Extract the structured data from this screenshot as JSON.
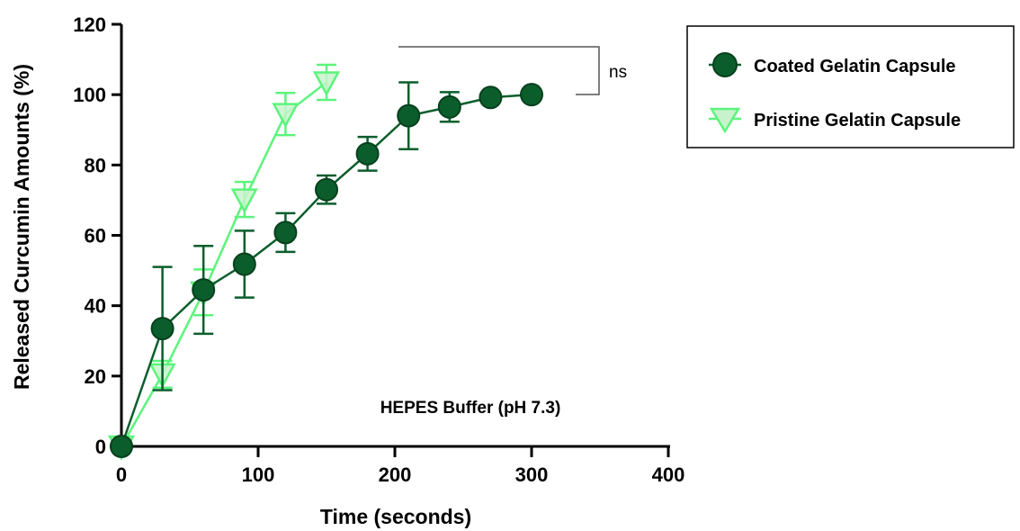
{
  "chart_data": {
    "type": "line",
    "xlabel": "Time (seconds)",
    "ylabel": "Released Curcumin Amounts (%)",
    "xlim": [
      0,
      400
    ],
    "ylim": [
      0,
      120
    ],
    "xticks": [
      "0",
      "100",
      "200",
      "300",
      "400"
    ],
    "yticks": [
      "0",
      "20",
      "40",
      "60",
      "80",
      "100",
      "120"
    ],
    "annotation": "HEPES Buffer (pH 7.3)",
    "significance": "ns",
    "grid": false,
    "legend_position": "outside-right",
    "series": [
      {
        "name": "Coated Gelatin Capsule",
        "marker": "circle",
        "color": "#0b5e2c",
        "points": [
          {
            "x": 0,
            "y": 0,
            "err": 0
          },
          {
            "x": 30,
            "y": 33.5,
            "err": 17.5
          },
          {
            "x": 60,
            "y": 44.5,
            "err": 12.5
          },
          {
            "x": 90,
            "y": 51.8,
            "err": 9.5
          },
          {
            "x": 120,
            "y": 60.8,
            "err": 5.5
          },
          {
            "x": 150,
            "y": 73,
            "err": 4
          },
          {
            "x": 180,
            "y": 83.2,
            "err": 4.8
          },
          {
            "x": 210,
            "y": 94,
            "err": 9.5
          },
          {
            "x": 240,
            "y": 96.5,
            "err": 4.2
          },
          {
            "x": 270,
            "y": 99.2,
            "err": 0
          },
          {
            "x": 300,
            "y": 100,
            "err": 0
          }
        ]
      },
      {
        "name": "Pristine Gelatin Capsule",
        "marker": "triangle-down",
        "color": "#5cf47c",
        "points": [
          {
            "x": 0,
            "y": 0,
            "err": 0
          },
          {
            "x": 30,
            "y": 20.5,
            "err": 3.8
          },
          {
            "x": 60,
            "y": 43.8,
            "err": 6.5
          },
          {
            "x": 90,
            "y": 70.2,
            "err": 5
          },
          {
            "x": 120,
            "y": 94.5,
            "err": 6
          },
          {
            "x": 150,
            "y": 103.5,
            "err": 5
          }
        ]
      }
    ]
  }
}
